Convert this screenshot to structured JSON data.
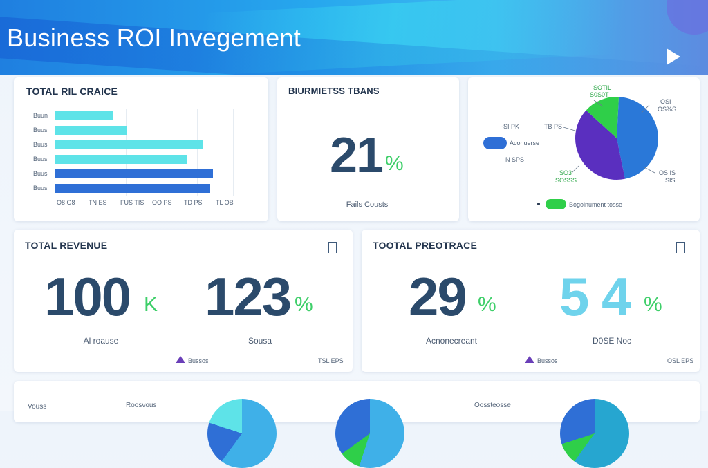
{
  "header": {
    "title": "Business ROI Invegement"
  },
  "cards": {
    "total_chart": {
      "title": "TOTAL RIL CRAICE",
      "chart_data": {
        "type": "bar",
        "orientation": "horizontal",
        "categories": [
          "Buun",
          "Buus",
          "Buus",
          "Buus",
          "Buus",
          "Buus"
        ],
        "values": [
          39,
          49,
          100,
          89,
          107,
          105
        ],
        "x_ticks": [
          "O8 O8",
          "TN ES",
          "FUS TIS",
          "OO PS",
          "TD PS",
          "TL OB"
        ],
        "colors": [
          "#5ee3e8",
          "#5ee3e8",
          "#5ee3e8",
          "#5ee3e8",
          "#2f6fd6",
          "#2f6fd6"
        ]
      }
    },
    "teams": {
      "title": "BIURMIETSS TBANS",
      "value": "21",
      "unit": "%",
      "caption": "Fails Cousts"
    },
    "pie": {
      "labels": {
        "top": "SOTIL",
        "top2": "S0S0T",
        "right": "OSI",
        "right2": "OS%S",
        "left1": "-SI PK",
        "left2": "TB PS",
        "left3": "N SPS",
        "legend_left": "Aconuerse",
        "bottom_left": "SO3",
        "bottom_left2": "SOSSS",
        "bottom_right": "OS IS",
        "bottom_right2": "SIS",
        "legend_bottom": "Bogoinument tosse"
      },
      "chart_data": {
        "type": "pie",
        "slices": [
          {
            "value": 46,
            "color": "#2a78d8"
          },
          {
            "value": 40,
            "color": "#5a2fbf"
          },
          {
            "value": 14,
            "color": "#2fcf49"
          }
        ]
      }
    },
    "revenue": {
      "title": "TOTAL REVENUE",
      "value1": "100",
      "unit1": "K",
      "caption1": "Al roause",
      "value2": "123",
      "unit2": "%",
      "caption2": "Sousa",
      "footer_left": "Bussos",
      "footer_right": "TSL EPS"
    },
    "protrace": {
      "title": "TOOTAL PREOTRACE",
      "value1": "29",
      "unit1": "%",
      "caption1": "Acnonecreant",
      "value2": "5 4",
      "unit2": "%",
      "caption2": "D0SE Noc",
      "footer_left": "Bussos",
      "footer_right": "OSL EPS"
    },
    "bottom": {
      "label1": "Vouss",
      "label2": "Roosvous",
      "label3": "Oossteosse"
    }
  },
  "colors": {
    "accent_green": "#3fcf6a",
    "accent_blue": "#2f6fd6",
    "cyan": "#5ee3e8",
    "navy": "#2b4a6b"
  }
}
